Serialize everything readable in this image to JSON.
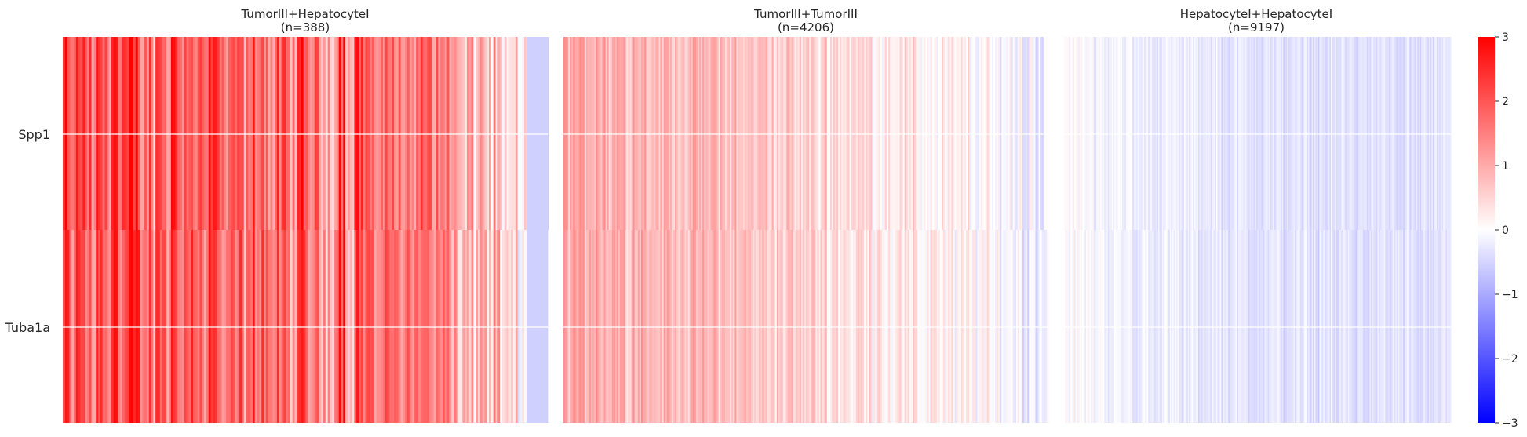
{
  "chart_data": [
    {
      "type": "heatmap",
      "title": "TumorIII+HepatocyteI",
      "subtitle": "(n=388)",
      "n": 388,
      "rows": [
        "Spp1",
        "Tuba1a"
      ],
      "columns_shown": 388,
      "column_bins": 90,
      "mean_score_trend": [
        2.2,
        1.3,
        2.2,
        2.2,
        1.8,
        1.1,
        2.4,
        1.9,
        1.9,
        2.7,
        1.5,
        2.0,
        2.6,
        2.5,
        1.3,
        1.7,
        1.2,
        2.1,
        2.1,
        1.4,
        2.5,
        2.2,
        1.9,
        2.2,
        1.7,
        1.9,
        1.7,
        2.5,
        2.1,
        1.6,
        1.1,
        1.7,
        2.1,
        1.4,
        1.4,
        2.0,
        2.0,
        1.9,
        1.4,
        1.7,
        1.8,
        1.5,
        1.4,
        1.9,
        2.2,
        1.6,
        1.7,
        1.3,
        1.1,
        1.3,
        1.4,
        2.6,
        1.2,
        1.2,
        2.3,
        2.1,
        2.0,
        1.5,
        1.3,
        1.2,
        2.0,
        1.8,
        1.5,
        1.3,
        1.5,
        1.4,
        2.2,
        1.9,
        1.8,
        1.3,
        1.5,
        1.8,
        1.0,
        0.6,
        0.6,
        0.9,
        0.8,
        1.2,
        0.7,
        0.7,
        0.6,
        0.2,
        0.1,
        0.3,
        -0.2,
        0.1,
        -0.4,
        -0.5,
        -0.6,
        -0.6
      ]
    },
    {
      "type": "heatmap",
      "title": "TumorIII+TumorIII",
      "subtitle": "(n=4206)",
      "n": 4206,
      "rows": [
        "Spp1",
        "Tuba1a"
      ],
      "column_bins": 110,
      "mean_score_trend": [
        1.0,
        1.0,
        1.2,
        0.9,
        1.0,
        1.1,
        1.0,
        1.3,
        0.9,
        1.0,
        0.8,
        1.0,
        1.1,
        0.9,
        0.8,
        1.0,
        0.9,
        1.1,
        0.9,
        0.8,
        0.9,
        0.9,
        0.8,
        1.0,
        0.8,
        0.8,
        0.9,
        0.8,
        0.7,
        0.8,
        0.9,
        0.8,
        0.7,
        0.8,
        0.9,
        0.8,
        0.7,
        0.7,
        0.8,
        0.6,
        0.7,
        0.8,
        0.6,
        0.7,
        0.6,
        0.7,
        0.6,
        0.7,
        0.6,
        0.5,
        0.6,
        0.7,
        0.5,
        0.6,
        0.5,
        0.6,
        0.5,
        0.4,
        0.5,
        0.6,
        0.4,
        0.5,
        0.4,
        0.5,
        0.4,
        0.3,
        0.4,
        0.5,
        0.3,
        0.4,
        0.3,
        0.4,
        0.3,
        0.2,
        0.3,
        0.4,
        0.2,
        0.3,
        0.2,
        0.3,
        0.2,
        0.1,
        0.2,
        0.3,
        0.1,
        0.2,
        0.1,
        0.2,
        0.1,
        0.0,
        0.1,
        0.2,
        0.0,
        0.1,
        0.0,
        0.1,
        0.0,
        -0.1,
        0.0,
        0.1,
        -0.1,
        0.0,
        -0.1,
        0.0,
        -0.2,
        -0.1,
        0.0,
        -0.1,
        -0.2,
        -0.1
      ]
    },
    {
      "type": "heatmap",
      "title": "HepatocyteI+HepatocyteI",
      "subtitle": "(n=9197)",
      "n": 9197,
      "rows": [
        "Spp1",
        "Tuba1a"
      ],
      "column_bins": 120,
      "mean_score_trend": [
        0.1,
        0.0,
        0.1,
        -0.1,
        0.0,
        0.0,
        -0.1,
        0.0,
        -0.1,
        -0.2,
        0.0,
        -0.1,
        -0.1,
        -0.2,
        -0.1,
        -0.1,
        -0.2,
        -0.1,
        -0.2,
        -0.2,
        -0.1,
        -0.2,
        -0.3,
        -0.2,
        -0.2,
        -0.1,
        -0.2,
        -0.3,
        -0.2,
        -0.2,
        -0.3,
        -0.2,
        -0.2,
        -0.3,
        -0.2,
        -0.2,
        -0.3,
        -0.2,
        -0.3,
        -0.3,
        -0.2,
        -0.3,
        -0.3,
        -0.2,
        -0.3,
        -0.3,
        -0.3,
        -0.2,
        -0.3,
        -0.3,
        -0.3,
        -0.4,
        -0.3,
        -0.3,
        -0.3,
        -0.3,
        -0.3,
        -0.4,
        -0.3,
        -0.3,
        -0.3,
        -0.4,
        -0.3,
        -0.3,
        -0.3,
        -0.4,
        -0.3,
        -0.3,
        -0.4,
        -0.3,
        -0.3,
        -0.4,
        -0.3,
        -0.4,
        -0.3,
        -0.3,
        -0.4,
        -0.3,
        -0.4,
        -0.3,
        -0.3,
        -0.4,
        -0.3,
        -0.4,
        -0.4,
        -0.3,
        -0.3,
        -0.4,
        -0.3,
        -0.4,
        -0.4,
        -0.3,
        -0.4,
        -0.3,
        -0.4,
        -0.4,
        -0.3,
        -0.4,
        -0.4,
        -0.3,
        -0.4,
        -0.4,
        -0.3,
        -0.4,
        -0.4,
        -0.4,
        -0.3,
        -0.4,
        -0.4,
        -0.4,
        -0.4,
        -0.3,
        -0.4,
        -0.4,
        -0.4,
        -0.4,
        -0.3,
        -0.4,
        -0.4,
        -0.4
      ]
    }
  ],
  "colorbar": {
    "colormap": "bwr",
    "vmin": -3,
    "vmax": 3,
    "ticks": [
      -3,
      -2,
      -1,
      0,
      1,
      2,
      3
    ],
    "tick_labels": [
      "−3",
      "−2",
      "−1",
      "0",
      "1",
      "2",
      "3"
    ],
    "colors": {
      "low": "#0000ff",
      "mid": "#ffffff",
      "high": "#ff0000"
    }
  }
}
